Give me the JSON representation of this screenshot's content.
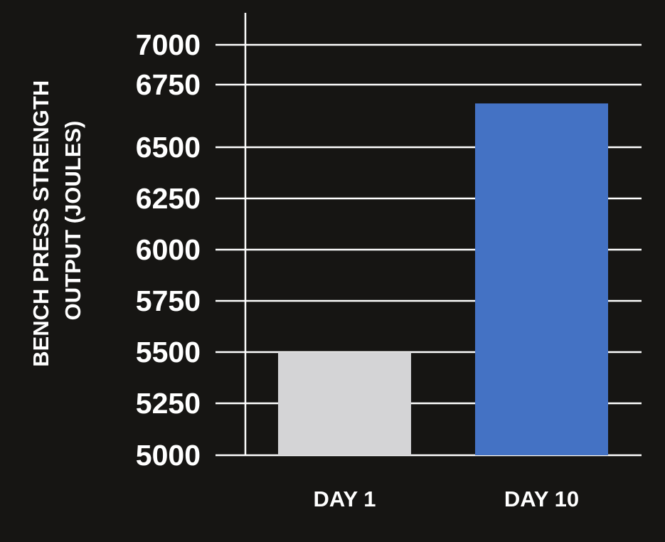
{
  "chart_data": {
    "type": "bar",
    "title": "",
    "xlabel": "",
    "ylabel_lines": [
      "BENCH PRESS STRENGTH",
      "OUTPUT (JOULES)"
    ],
    "categories": [
      "DAY 1",
      "DAY 10"
    ],
    "values": [
      5500,
      6675
    ],
    "colors": [
      "#d4d4d6",
      "#4472c4"
    ],
    "yticks": [
      5000,
      5250,
      5500,
      5750,
      6000,
      6250,
      6500,
      6750,
      7000
    ],
    "ylim": [
      5000,
      7000
    ],
    "grid": true,
    "background": "#161513"
  }
}
